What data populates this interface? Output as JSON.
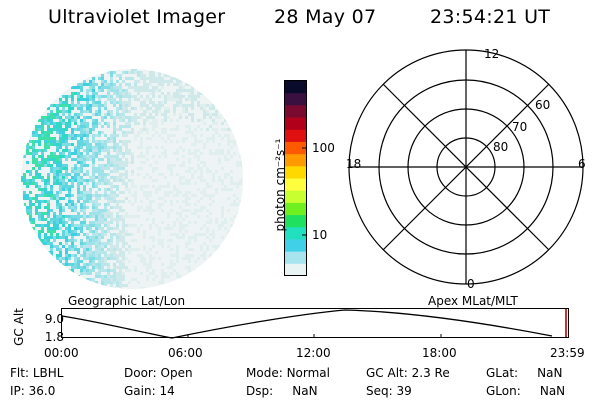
{
  "header": {
    "instrument": "Ultraviolet Imager",
    "date": "28 May 07",
    "time": "23:54:21 UT"
  },
  "colorbar": {
    "unit_label": "photon cm⁻²s⁻¹",
    "ticks": [
      "100",
      "10"
    ],
    "colors": [
      "#0a0a2a",
      "#3a1040",
      "#7a0a30",
      "#b0001a",
      "#e01010",
      "#ff5a00",
      "#ff9a00",
      "#ffd800",
      "#ffff40",
      "#c8ff30",
      "#70f020",
      "#20e060",
      "#20e0c0",
      "#40d0e8",
      "#a8e4ee",
      "#e8f4f4"
    ]
  },
  "polar_grid": {
    "mlat_labels": [
      "80",
      "70",
      "60"
    ],
    "mlt_labels": {
      "top": "12",
      "right": "6",
      "bottom": "0",
      "left": "18"
    }
  },
  "timeline": {
    "left_label": "Geographic Lat/Lon",
    "right_label": "Apex MLat/MLT",
    "axis_label": "GC Alt",
    "y_ticks": [
      "9.0",
      "1.8"
    ],
    "x_ticks": [
      "00:00",
      "06:00",
      "12:00",
      "18:00",
      "23:59"
    ]
  },
  "status": {
    "row1": [
      {
        "key": "Flt:",
        "value": "LBHL"
      },
      {
        "key": "Door:",
        "value": "Open"
      },
      {
        "key": "Mode:",
        "value": "Normal"
      },
      {
        "key": "GC Alt:",
        "value": "2.3 Re"
      },
      {
        "key": "GLat:",
        "value": "NaN"
      }
    ],
    "row2": [
      {
        "key": "IP:",
        "value": "36.0"
      },
      {
        "key": "Gain:",
        "value": "14"
      },
      {
        "key": "Dsp:",
        "value": "NaN"
      },
      {
        "key": "Seq:",
        "value": "39"
      },
      {
        "key": "GLon:",
        "value": "NaN"
      }
    ]
  }
}
